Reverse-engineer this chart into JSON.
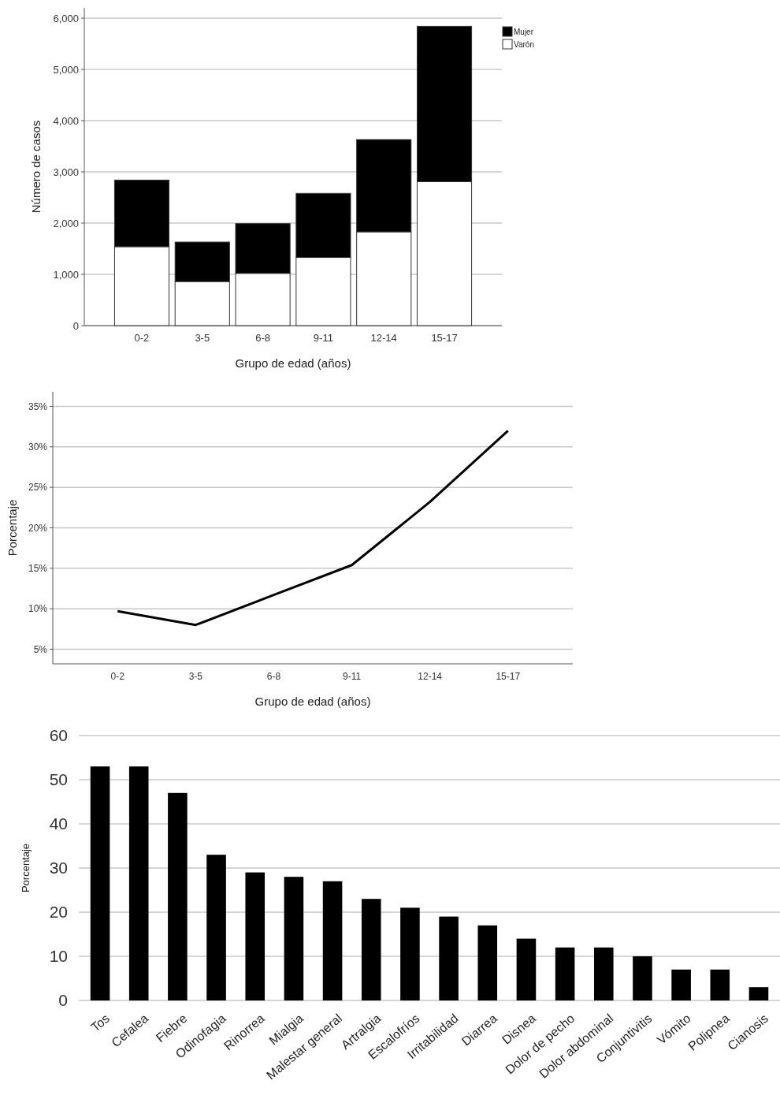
{
  "chart_data": [
    {
      "type": "bar",
      "xlabel": "Grupo de edad (años)",
      "ylabel": "Número de casos",
      "categories": [
        "0-2",
        "3-5",
        "6-8",
        "9-11",
        "12-14",
        "15-17"
      ],
      "stacked": true,
      "series": [
        {
          "name": "Varón",
          "color": "#ffffff",
          "values": [
            1540,
            860,
            1020,
            1330,
            1830,
            2810
          ]
        },
        {
          "name": "Mujer",
          "color": "#000000",
          "values": [
            1300,
            770,
            970,
            1250,
            1800,
            3030
          ]
        }
      ],
      "ylim": [
        0,
        6200
      ],
      "yticks": [
        {
          "value": 0,
          "label": "0"
        },
        {
          "value": 1000,
          "label": "1,000"
        },
        {
          "value": 2000,
          "label": "2,000"
        },
        {
          "value": 3000,
          "label": "3,000"
        },
        {
          "value": 4000,
          "label": "4,000"
        },
        {
          "value": 5000,
          "label": "5,000"
        },
        {
          "value": 6000,
          "label": "6,000"
        }
      ],
      "grid": "y",
      "legend": "top right"
    },
    {
      "type": "line",
      "xlabel": "Grupo de edad (años)",
      "ylabel": "Porcentaje",
      "categories": [
        "0-2",
        "3-5",
        "6-8",
        "9-11",
        "12-14",
        "15-17"
      ],
      "series": [
        {
          "color": "#000000",
          "values": [
            9.7,
            8.0,
            11.7,
            15.4,
            23.2,
            32.0
          ]
        }
      ],
      "ylim": [
        3.2,
        36.8
      ],
      "yticks": [
        {
          "value": 5,
          "label": "5%"
        },
        {
          "value": 10,
          "label": "10%"
        },
        {
          "value": 15,
          "label": "15%"
        },
        {
          "value": 20,
          "label": "20%"
        },
        {
          "value": 25,
          "label": "25%"
        },
        {
          "value": 30,
          "label": "30%"
        },
        {
          "value": 35,
          "label": "35%"
        }
      ],
      "grid": "y",
      "marker": "none",
      "line_style": "solid"
    },
    {
      "type": "bar",
      "ylabel": "Porcentaje",
      "categories": [
        "Tos",
        "Cefalea",
        "Fiebre",
        "Odinofagia",
        "Rinorrea",
        "Mialgia",
        "Malestar general",
        "Artralgia",
        "Escalofríos",
        "Irritabilidad",
        "Diarrea",
        "Disnea",
        "Dolor de pecho",
        "Dolor abdominal",
        "Conjuntivitis",
        "Vómito",
        "Polipnea",
        "Cianosis"
      ],
      "series": [
        {
          "color": "#000000",
          "values": [
            53,
            53,
            47,
            33,
            29,
            28,
            27,
            23,
            21,
            19,
            17,
            14,
            12,
            12,
            10,
            7,
            7,
            3
          ]
        }
      ],
      "ylim": [
        0,
        60
      ],
      "yticks": [
        0,
        10,
        20,
        30,
        40,
        50,
        60
      ],
      "grid": "y"
    }
  ]
}
